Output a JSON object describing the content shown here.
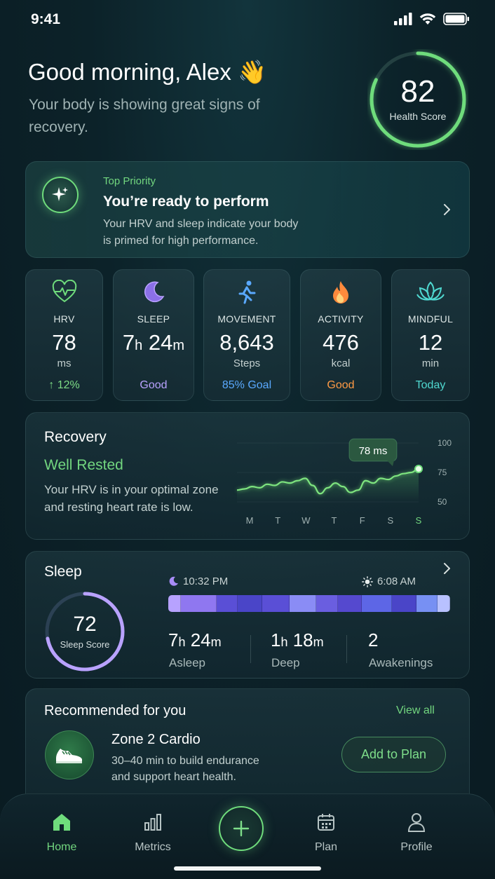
{
  "status_bar": {
    "time": "9:41"
  },
  "header": {
    "greeting": "Good morning, Alex 👋",
    "subtitle": "Your body is showing great signs of recovery.",
    "health_score": {
      "value": "82",
      "label": "Health Score",
      "fraction": 0.82
    }
  },
  "priority": {
    "tag": "Top Priority",
    "title": "You’re ready to perform",
    "description": "Your HRV and sleep indicate your body is primed for high performance."
  },
  "metrics": [
    {
      "name": "HRV",
      "value": "78",
      "unit": "ms",
      "status": "↑ 12%",
      "color": "#7ddc86",
      "icon": "heart-pulse-icon"
    },
    {
      "name": "SLEEP",
      "value_h": "7",
      "value_m": "24",
      "status": "Good",
      "color": "#b9a2ff",
      "icon": "moon-icon"
    },
    {
      "name": "MOVEMENT",
      "value": "8,643",
      "unit": "Steps",
      "status": "85% Goal",
      "color": "#5aa9ff",
      "icon": "runner-icon"
    },
    {
      "name": "ACTIVITY",
      "value": "476",
      "unit": "kcal",
      "status": "Good",
      "color": "#ff9a45",
      "icon": "flame-icon"
    },
    {
      "name": "MINDFUL",
      "value": "12",
      "unit": "min",
      "status": "Today",
      "color": "#4fd8d0",
      "icon": "lotus-icon"
    }
  ],
  "recovery": {
    "title": "Recovery",
    "status": "Well Rested",
    "description": "Your HRV is in your optimal zone and resting heart rate is low.",
    "tooltip": "78 ms",
    "y_ticks": [
      "100",
      "75",
      "50"
    ],
    "days": [
      "M",
      "T",
      "W",
      "T",
      "F",
      "S",
      "S"
    ]
  },
  "chart_data": {
    "type": "line",
    "title": "Recovery",
    "x": [
      "M",
      "",
      "",
      "",
      "T",
      "",
      "",
      "",
      "W",
      "",
      "",
      "",
      "T",
      "",
      "",
      "",
      "F",
      "",
      "",
      "",
      "S",
      "",
      "",
      "",
      "S"
    ],
    "series": [
      {
        "values": [
          60,
          61,
          63,
          62,
          65,
          64,
          67,
          66,
          68,
          70,
          64,
          57,
          62,
          66,
          63,
          58,
          60,
          68,
          66,
          70,
          69,
          72,
          74,
          75,
          78
        ]
      }
    ],
    "ylim": [
      50,
      100
    ],
    "yticks": [
      50,
      75,
      100
    ],
    "categories": [
      "M",
      "T",
      "W",
      "T",
      "F",
      "S",
      "S"
    ],
    "highlight": {
      "label": "78 ms",
      "value": 78
    }
  },
  "sleep": {
    "title": "Sleep",
    "score": "72",
    "score_label": "Sleep Score",
    "score_fraction": 0.72,
    "bedtime": "10:32 PM",
    "wake": "6:08 AM",
    "stages": [
      "#b7a2ff",
      "#8f77f0",
      "#5a4fd6",
      "#4a45c8",
      "#5a4fd6",
      "#8a8cf5",
      "#6a5ee0",
      "#5549cf",
      "#5d66e6",
      "#4a45c8",
      "#7790f3",
      "#b8c1ff"
    ],
    "stage_widths": [
      4,
      12,
      7,
      8,
      9,
      9,
      7,
      8,
      10,
      8,
      7,
      4
    ],
    "asleep_h": "7",
    "asleep_m": "24",
    "asleep_label": "Asleep",
    "deep_h": "1",
    "deep_m": "18",
    "deep_label": "Deep",
    "awakenings": "2",
    "awakenings_label": "Awakenings"
  },
  "recommended": {
    "title": "Recommended for you",
    "view_all": "View all",
    "item_name": "Zone 2 Cardio",
    "item_desc": "30–40 min to build endurance and support heart health.",
    "add_label": "Add to Plan"
  },
  "tabs": {
    "home": "Home",
    "metrics": "Metrics",
    "plan": "Plan",
    "profile": "Profile"
  },
  "colors": {
    "accent": "#72d67f",
    "sleep_accent": "#b9a2ff"
  }
}
